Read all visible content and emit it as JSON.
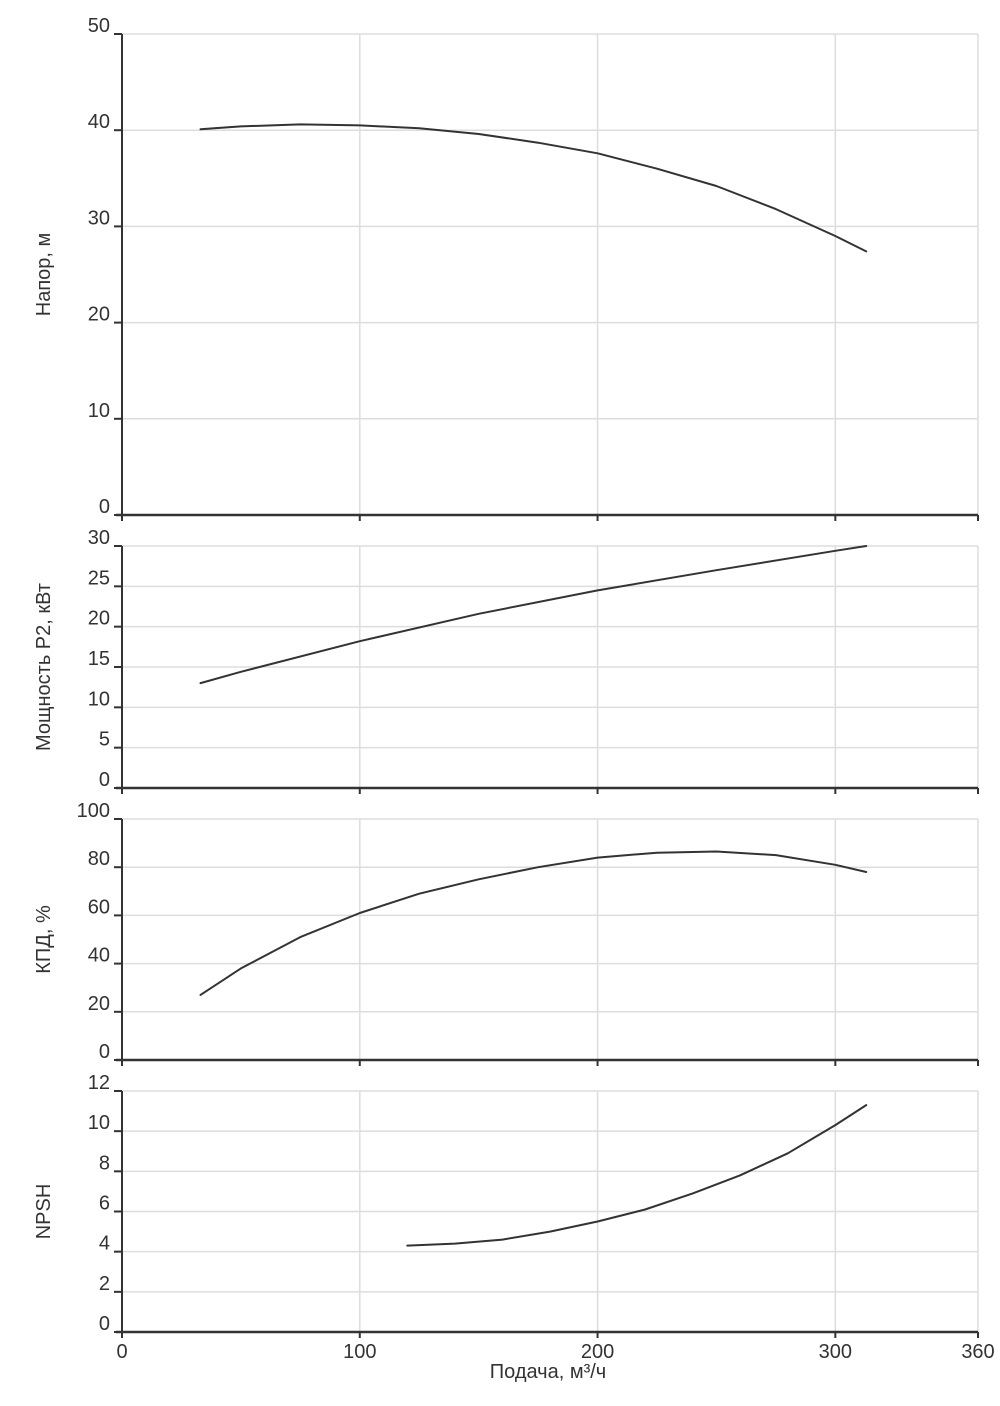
{
  "colors": {
    "grid": "#dddddd",
    "axis": "#333333",
    "curve": "#333333",
    "text": "#333333"
  },
  "chart_data": [
    {
      "type": "line",
      "id": "head",
      "ylabel": "Напор, м",
      "xlim": [
        0,
        360
      ],
      "ylim": [
        0,
        50
      ],
      "yticks": [
        0,
        10,
        20,
        30,
        40,
        50
      ],
      "xgrid": [
        0,
        100,
        200,
        300,
        360
      ],
      "grid": true,
      "series": [
        {
          "x": [
            33,
            50,
            75,
            100,
            125,
            150,
            175,
            200,
            225,
            250,
            275,
            300,
            313
          ],
          "y": [
            40.1,
            40.4,
            40.6,
            40.5,
            40.2,
            39.6,
            38.7,
            37.6,
            36.0,
            34.2,
            31.8,
            29.0,
            27.4
          ]
        }
      ]
    },
    {
      "type": "line",
      "id": "power",
      "ylabel": "Мощность P2, кВт",
      "xlim": [
        0,
        360
      ],
      "ylim": [
        0,
        30
      ],
      "yticks": [
        0,
        5,
        10,
        15,
        20,
        25,
        30
      ],
      "xgrid": [
        0,
        100,
        200,
        300,
        360
      ],
      "grid": true,
      "series": [
        {
          "x": [
            33,
            50,
            100,
            150,
            200,
            250,
            300,
            313
          ],
          "y": [
            13.0,
            14.4,
            18.2,
            21.6,
            24.5,
            27.0,
            29.4,
            30.0
          ]
        }
      ]
    },
    {
      "type": "line",
      "id": "efficiency",
      "ylabel": "КПД, %",
      "xlim": [
        0,
        360
      ],
      "ylim": [
        0,
        100
      ],
      "yticks": [
        0,
        20,
        40,
        60,
        80,
        100
      ],
      "xgrid": [
        0,
        100,
        200,
        300,
        360
      ],
      "grid": true,
      "series": [
        {
          "x": [
            33,
            50,
            75,
            100,
            125,
            150,
            175,
            200,
            225,
            250,
            275,
            300,
            313
          ],
          "y": [
            27,
            38,
            51,
            61,
            69,
            75,
            80,
            84,
            86,
            86.5,
            85,
            81,
            78
          ]
        }
      ]
    },
    {
      "type": "line",
      "id": "npsh",
      "ylabel": "NPSH",
      "xlabel": "Подача, м³/ч",
      "xlim": [
        0,
        360
      ],
      "ylim": [
        0,
        12
      ],
      "yticks": [
        0,
        2,
        4,
        6,
        8,
        10,
        12
      ],
      "xticks": [
        0,
        100,
        200,
        300,
        360
      ],
      "xgrid": [
        0,
        100,
        200,
        300,
        360
      ],
      "grid": true,
      "series": [
        {
          "x": [
            120,
            140,
            160,
            180,
            200,
            220,
            240,
            260,
            280,
            300,
            313
          ],
          "y": [
            4.3,
            4.4,
            4.6,
            5.0,
            5.5,
            6.1,
            6.9,
            7.8,
            8.9,
            10.3,
            11.3
          ]
        }
      ]
    }
  ]
}
